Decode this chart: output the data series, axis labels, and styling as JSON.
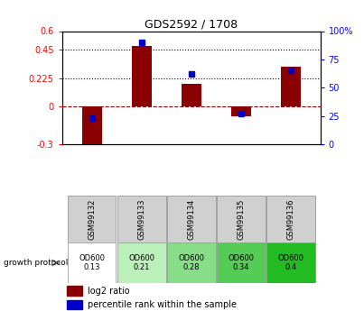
{
  "title": "GDS2592 / 1708",
  "categories": [
    "GSM99132",
    "GSM99133",
    "GSM99134",
    "GSM99135",
    "GSM99136"
  ],
  "log2_ratio": [
    -0.33,
    0.48,
    0.18,
    -0.08,
    0.32
  ],
  "percentile_rank": [
    23,
    90,
    62,
    27,
    65
  ],
  "ylim_left": [
    -0.3,
    0.6
  ],
  "ylim_right": [
    0,
    100
  ],
  "yticks_left": [
    -0.3,
    0,
    0.225,
    0.45,
    0.6
  ],
  "yticks_right": [
    0,
    25,
    50,
    75,
    100
  ],
  "hlines": [
    0.225,
    0.45
  ],
  "bar_color": "#8B0000",
  "dot_color": "#0000CD",
  "zero_line_color": "#8B0000",
  "growth_protocol_labels": [
    "OD600\n0.13",
    "OD600\n0.21",
    "OD600\n0.28",
    "OD600\n0.34",
    "OD600\n0.4"
  ],
  "growth_protocol_colors": [
    "#ffffff",
    "#bbf0bb",
    "#88dd88",
    "#55cc55",
    "#22bb22"
  ],
  "legend_log2": "log2 ratio",
  "legend_percentile": "percentile rank within the sample"
}
